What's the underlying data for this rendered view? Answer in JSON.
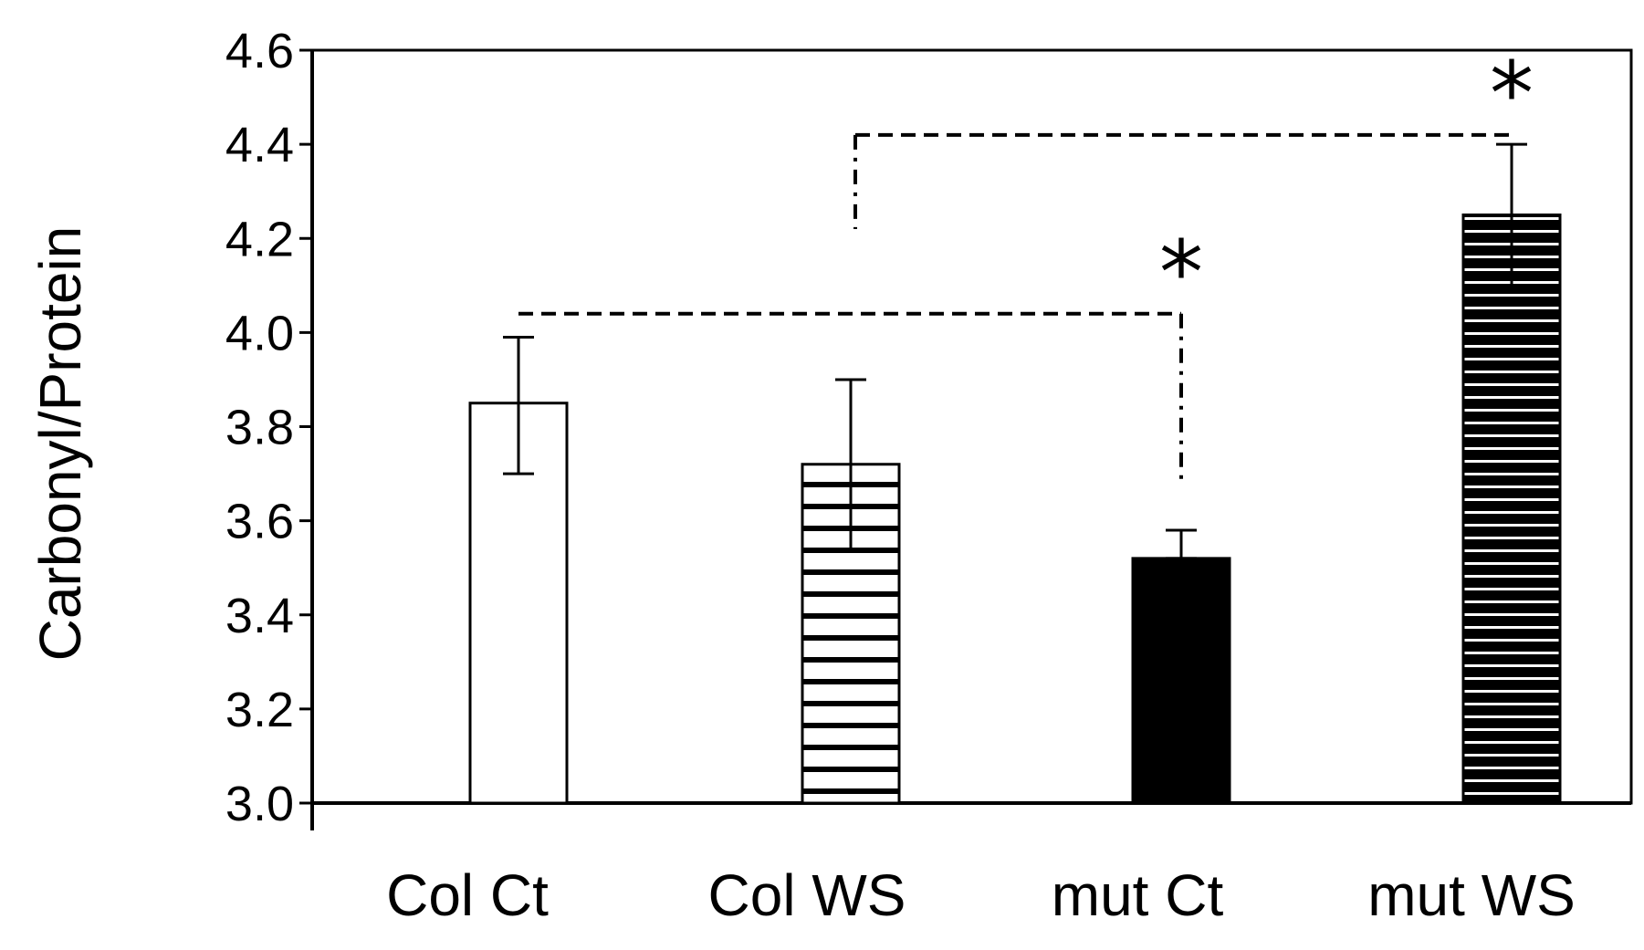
{
  "chart_data": {
    "type": "bar",
    "title": "",
    "xlabel": "",
    "ylabel": "Carbonyl/Protein",
    "ylim": [
      3.0,
      4.6
    ],
    "yticks": [
      "3.0",
      "3.2",
      "3.4",
      "3.6",
      "3.8",
      "4.0",
      "4.2",
      "4.4",
      "4.6"
    ],
    "ytick_values": [
      3.0,
      3.2,
      3.4,
      3.6,
      3.8,
      4.0,
      4.2,
      4.4,
      4.6
    ],
    "categories": [
      "Col Ct",
      "Col WS",
      "mut Ct",
      "mut WS"
    ],
    "values": [
      3.85,
      3.72,
      3.52,
      4.25
    ],
    "error_upper": [
      3.99,
      3.9,
      3.58,
      4.4
    ],
    "error_lower": [
      3.7,
      3.54,
      3.52,
      4.1
    ],
    "fills": [
      "white",
      "hatched-white",
      "black",
      "hatched-black"
    ],
    "grid": false,
    "significance": [
      {
        "from": "Col Ct",
        "to": "mut Ct",
        "bracket_y": 4.04,
        "label": "*"
      },
      {
        "from": "Col WS",
        "to": "mut WS",
        "bracket_y": 4.42,
        "label": "*"
      }
    ]
  }
}
